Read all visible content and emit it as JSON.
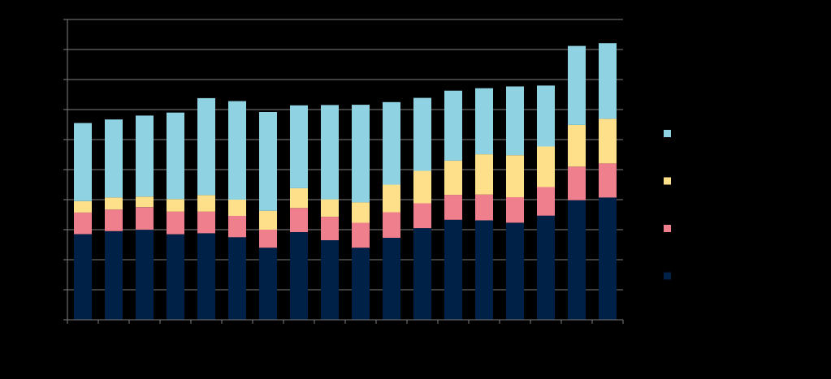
{
  "chart_data": {
    "type": "bar",
    "stacked": true,
    "title": "",
    "xlabel": "",
    "ylabel": "",
    "ylim": [
      0,
      100
    ],
    "grid": true,
    "legend_position": "right",
    "categories": [
      "",
      "",
      "",
      "",
      "",
      "",
      "",
      "",
      "",
      "",
      "",
      "",
      "",
      "",
      "",
      "",
      "",
      ""
    ],
    "series": [
      {
        "color": "#002147",
        "values": [
          28.5,
          29.5,
          30,
          28.5,
          28.8,
          27.5,
          24,
          29.2,
          26.5,
          24,
          27.3,
          30.5,
          33.3,
          33.1,
          32.3,
          34.7,
          39.8,
          40.7
        ]
      },
      {
        "color": "#F07F8E",
        "values": [
          7.2,
          7.2,
          7.5,
          7.5,
          7.2,
          7.1,
          6,
          8,
          7.8,
          8.3,
          8.5,
          8.3,
          8.3,
          8.6,
          8.5,
          9.5,
          11.2,
          11.4
        ]
      },
      {
        "color": "#FFE08A",
        "values": [
          3.8,
          4,
          3.5,
          4.2,
          5.5,
          5.4,
          6.3,
          6.6,
          5.8,
          6.8,
          9.2,
          10.8,
          11.4,
          13.4,
          14,
          13.5,
          13.9,
          14.8
        ]
      },
      {
        "color": "#8FD3E3",
        "values": [
          26,
          26,
          27,
          28.8,
          32.3,
          32.8,
          32.9,
          27.6,
          31.4,
          32.5,
          27.5,
          24.3,
          23.3,
          22,
          22.9,
          20.3,
          26.3,
          25.2
        ]
      }
    ],
    "colors": {
      "background": "#000000",
      "gridline": "#7f7f7f",
      "axis": "#7f7f7f"
    }
  }
}
